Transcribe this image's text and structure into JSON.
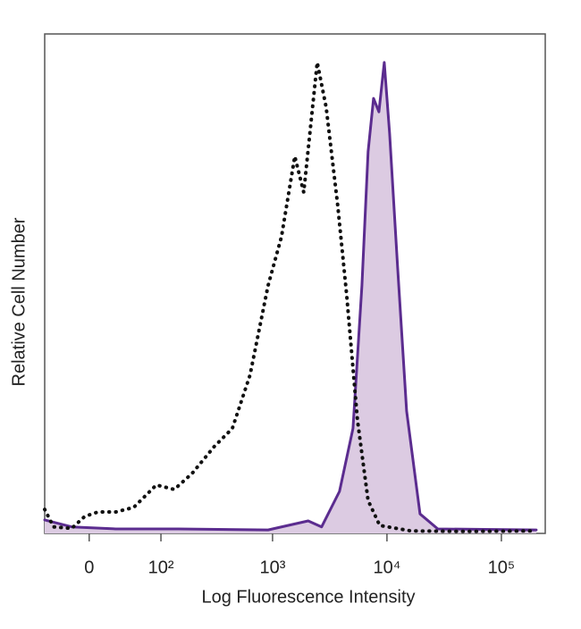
{
  "chart_data": {
    "type": "line",
    "xlabel": "Log Fluorescence Intensity",
    "ylabel": "Relative Cell Number",
    "xscale": "biexponential",
    "xlim": [
      -51,
      241700
    ],
    "ylim": [
      0,
      100
    ],
    "xticks": [
      0,
      {
        "value": 100,
        "label": "10²"
      },
      {
        "value": 1000,
        "label": "10³"
      },
      {
        "value": 10000,
        "label": "10⁴"
      },
      {
        "value": 100000,
        "label": "10⁵"
      }
    ],
    "series": [
      {
        "color": "#5b2c8f",
        "fill": "#dccbe2",
        "style": "solid",
        "x": [
          -51,
          -18,
          28,
          146,
          913,
          2050,
          2686,
          3850,
          5045,
          6040,
          6842,
          7636,
          8500,
          9475,
          10550,
          12400,
          14850,
          19450,
          27800,
          201500
        ],
        "values": [
          2.7,
          1.3,
          0.9,
          0.9,
          0.7,
          2.5,
          1.3,
          8.4,
          21,
          49.6,
          76.4,
          87.1,
          84.4,
          94.3,
          80,
          53.1,
          24.5,
          3.9,
          0.9,
          0.7
        ]
      },
      {
        "color": "#111111",
        "style": "dotted",
        "x": [
          -51,
          -39,
          -18,
          -4.5,
          9,
          28,
          51,
          90,
          134,
          195,
          308,
          444,
          635,
          913,
          1196,
          1566,
          1875,
          2458,
          2942,
          3710,
          4444,
          5518,
          6842,
          8650,
          16200,
          47700,
          201500
        ],
        "values": [
          4.8,
          1.3,
          1,
          3.4,
          4.3,
          4.3,
          5.2,
          9.7,
          8.8,
          12,
          17.4,
          21,
          31.7,
          49.6,
          59.4,
          75.5,
          68.3,
          94.3,
          85.3,
          65.7,
          47.8,
          22.7,
          6.6,
          1.6,
          0.5,
          0.4,
          0.5
        ]
      }
    ]
  }
}
